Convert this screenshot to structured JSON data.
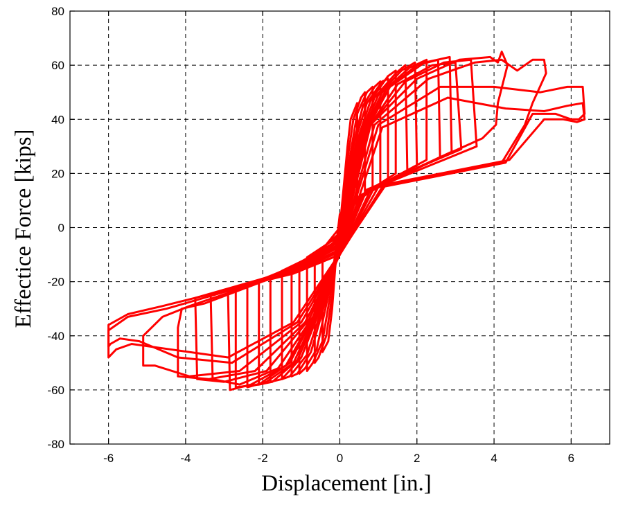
{
  "chart_data": {
    "type": "line",
    "title": "",
    "xlabel": "Displacement [in.]",
    "ylabel": "Effectice Force [kips]",
    "xlim": [
      -7,
      7
    ],
    "ylim": [
      -80,
      80
    ],
    "xticks": [
      -6,
      -4,
      -2,
      0,
      2,
      4,
      6
    ],
    "yticks": [
      -80,
      -60,
      -40,
      -20,
      0,
      20,
      40,
      60,
      80
    ],
    "grid": true,
    "legend": "none",
    "series": [
      {
        "color": "#ff0000",
        "segments": [
          [
            [
              0,
              0
            ],
            [
              0.12,
              18
            ],
            [
              0.2,
              30
            ],
            [
              0.28,
              40
            ],
            [
              0.45,
              46
            ],
            [
              0.45,
              10
            ],
            [
              0,
              3
            ],
            [
              -0.12,
              -15
            ],
            [
              -0.2,
              -30
            ],
            [
              -0.3,
              -42
            ],
            [
              -0.45,
              -46
            ],
            [
              -0.45,
              -8
            ],
            [
              0,
              0
            ]
          ],
          [
            [
              0,
              0
            ],
            [
              0.2,
              25
            ],
            [
              0.35,
              40
            ],
            [
              0.55,
              48
            ],
            [
              0.65,
              50
            ],
            [
              0.65,
              12
            ],
            [
              0,
              4
            ],
            [
              -0.2,
              -25
            ],
            [
              -0.35,
              -40
            ],
            [
              -0.55,
              -48
            ],
            [
              -0.65,
              -50
            ],
            [
              -0.65,
              -10
            ],
            [
              0,
              -2
            ]
          ],
          [
            [
              0,
              -2
            ],
            [
              0.25,
              25
            ],
            [
              0.45,
              42
            ],
            [
              0.7,
              50
            ],
            [
              0.85,
              52
            ],
            [
              0.85,
              14
            ],
            [
              0,
              5
            ],
            [
              -0.25,
              -25
            ],
            [
              -0.45,
              -42
            ],
            [
              -0.7,
              -50
            ],
            [
              -0.85,
              -53
            ],
            [
              -0.85,
              -11
            ],
            [
              0,
              -3
            ]
          ],
          [
            [
              0,
              -3
            ],
            [
              0.3,
              28
            ],
            [
              0.6,
              45
            ],
            [
              0.9,
              52
            ],
            [
              1.05,
              54
            ],
            [
              1.05,
              16
            ],
            [
              0.2,
              8
            ],
            [
              -0.3,
              -25
            ],
            [
              -0.6,
              -45
            ],
            [
              -0.9,
              -52
            ],
            [
              -1.05,
              -54
            ],
            [
              -1.05,
              -13
            ],
            [
              -0.2,
              -6
            ],
            [
              0,
              -3
            ]
          ],
          [
            [
              0,
              -3
            ],
            [
              0.35,
              30
            ],
            [
              0.7,
              46
            ],
            [
              1.1,
              54
            ],
            [
              1.25,
              55
            ],
            [
              1.25,
              18
            ],
            [
              0.3,
              9
            ],
            [
              -0.35,
              -26
            ],
            [
              -0.75,
              -46
            ],
            [
              -1.1,
              -54
            ],
            [
              -1.25,
              -55
            ],
            [
              -1.25,
              -15
            ],
            [
              -0.3,
              -7
            ],
            [
              0,
              -4
            ]
          ],
          [
            [
              0,
              -4
            ],
            [
              0.4,
              30
            ],
            [
              0.8,
              47
            ],
            [
              1.25,
              56
            ],
            [
              1.45,
              58
            ],
            [
              1.45,
              20
            ],
            [
              0.35,
              10
            ],
            [
              -0.4,
              -27
            ],
            [
              -0.85,
              -47
            ],
            [
              -1.3,
              -55
            ],
            [
              -1.5,
              -56
            ],
            [
              -1.5,
              -16
            ],
            [
              -0.35,
              -8
            ],
            [
              0,
              -5
            ]
          ],
          [
            [
              0,
              -5
            ],
            [
              0.45,
              31
            ],
            [
              0.9,
              48
            ],
            [
              1.45,
              57
            ],
            [
              1.7,
              60
            ],
            [
              1.75,
              21
            ],
            [
              0.4,
              10
            ],
            [
              -0.45,
              -28
            ],
            [
              -1.0,
              -48
            ],
            [
              -1.5,
              -56
            ],
            [
              -1.8,
              -57
            ],
            [
              -1.8,
              -18
            ],
            [
              -0.4,
              -9
            ],
            [
              0,
              -6
            ]
          ],
          [
            [
              0,
              -6
            ],
            [
              0.5,
              32
            ],
            [
              1.0,
              49
            ],
            [
              1.6,
              58
            ],
            [
              1.95,
              61
            ],
            [
              2.0,
              23
            ],
            [
              0.5,
              11
            ],
            [
              -0.5,
              -29
            ],
            [
              -1.1,
              -49
            ],
            [
              -1.75,
              -57
            ],
            [
              -2.1,
              -58
            ],
            [
              -2.1,
              -20
            ],
            [
              -0.5,
              -10
            ],
            [
              0,
              -6
            ]
          ],
          [
            [
              0,
              -6
            ],
            [
              0.55,
              33
            ],
            [
              1.1,
              50
            ],
            [
              1.8,
              59
            ],
            [
              2.25,
              62
            ],
            [
              2.25,
              25
            ],
            [
              0.55,
              12
            ],
            [
              -0.55,
              -30
            ],
            [
              -1.2,
              -50
            ],
            [
              -1.9,
              -57
            ],
            [
              -2.4,
              -59
            ],
            [
              -2.4,
              -22
            ],
            [
              -0.55,
              -10
            ],
            [
              0,
              -7
            ]
          ],
          [
            [
              0,
              -7
            ],
            [
              0.6,
              34
            ],
            [
              1.2,
              51
            ],
            [
              2.0,
              60
            ],
            [
              2.55,
              62
            ],
            [
              2.6,
              26
            ],
            [
              0.6,
              12
            ],
            [
              -0.6,
              -31
            ],
            [
              -1.3,
              -50
            ],
            [
              -2.1,
              -58
            ],
            [
              -2.7,
              -59
            ],
            [
              -2.7,
              -23
            ],
            [
              -0.6,
              -11
            ],
            [
              0,
              -7
            ]
          ],
          [
            [
              0,
              -7
            ],
            [
              0.65,
              35
            ],
            [
              1.3,
              52
            ],
            [
              2.2,
              61
            ],
            [
              2.85,
              63
            ],
            [
              2.9,
              28
            ],
            [
              0.65,
              13
            ],
            [
              -0.65,
              -32
            ],
            [
              -1.4,
              -51
            ],
            [
              -2.3,
              -58
            ],
            [
              -2.85,
              -60
            ],
            [
              -2.9,
              -24
            ],
            [
              -0.65,
              -12
            ],
            [
              0,
              -7
            ]
          ],
          [
            [
              0,
              -7
            ],
            [
              0.7,
              36
            ],
            [
              1.5,
              53
            ],
            [
              2.4,
              60
            ],
            [
              3.0,
              61
            ],
            [
              3.15,
              29
            ],
            [
              0.7,
              14
            ],
            [
              -0.7,
              -33
            ],
            [
              -1.6,
              -52
            ],
            [
              -2.6,
              -58
            ],
            [
              -3.3,
              -56
            ],
            [
              -3.35,
              -25
            ],
            [
              -0.7,
              -13
            ],
            [
              0,
              -8
            ]
          ],
          [
            [
              0,
              -8
            ],
            [
              0.75,
              37
            ],
            [
              1.7,
              54
            ],
            [
              2.7,
              61
            ],
            [
              3.4,
              62
            ],
            [
              3.55,
              30
            ],
            [
              0.8,
              14
            ],
            [
              -0.8,
              -34
            ],
            [
              -1.9,
              -53
            ],
            [
              -3.0,
              -57
            ],
            [
              -3.7,
              -56
            ],
            [
              -3.75,
              -26
            ],
            [
              -0.8,
              -14
            ],
            [
              0,
              -8
            ]
          ],
          [
            [
              0,
              -8
            ],
            [
              0.8,
              38
            ],
            [
              2.0,
              55
            ],
            [
              3.1,
              62
            ],
            [
              3.9,
              63
            ],
            [
              4.1,
              61
            ],
            [
              4.2,
              65
            ],
            [
              4.35,
              60
            ],
            [
              4.1,
              46
            ],
            [
              4.05,
              38
            ],
            [
              3.7,
              33
            ],
            [
              0.9,
              15
            ],
            [
              -0.9,
              -35
            ],
            [
              -2.2,
              -53
            ],
            [
              -3.4,
              -56
            ],
            [
              -4.2,
              -55
            ],
            [
              -4.2,
              -37
            ],
            [
              -4.1,
              -30
            ],
            [
              -3.5,
              -28
            ],
            [
              -0.9,
              -14
            ],
            [
              0,
              -9
            ]
          ],
          [
            [
              0,
              -9
            ],
            [
              0.9,
              38
            ],
            [
              2.3,
              55
            ],
            [
              3.5,
              61
            ],
            [
              4.2,
              62
            ],
            [
              4.6,
              58
            ],
            [
              5.0,
              62
            ],
            [
              5.3,
              62
            ],
            [
              5.35,
              57
            ],
            [
              5.0,
              46
            ],
            [
              4.8,
              38
            ],
            [
              4.2,
              24
            ],
            [
              1.0,
              15
            ],
            [
              -1.0,
              -35
            ],
            [
              -2.6,
              -53
            ],
            [
              -3.9,
              -55
            ],
            [
              -4.8,
              -51
            ],
            [
              -5.1,
              -51
            ],
            [
              -5.1,
              -40
            ],
            [
              -4.6,
              -33
            ],
            [
              -3.9,
              -29
            ],
            [
              -1.0,
              -15
            ],
            [
              0,
              -9
            ]
          ],
          [
            [
              0,
              -9
            ],
            [
              1.0,
              38
            ],
            [
              2.6,
              52
            ],
            [
              4.0,
              52
            ],
            [
              5.2,
              50
            ],
            [
              5.9,
              52
            ],
            [
              6.3,
              52
            ],
            [
              6.35,
              42
            ],
            [
              6.2,
              40
            ],
            [
              6.0,
              40
            ],
            [
              5.6,
              42
            ],
            [
              5.0,
              42
            ],
            [
              4.3,
              24
            ],
            [
              1.1,
              15
            ],
            [
              -1.1,
              -35
            ],
            [
              -2.8,
              -50
            ],
            [
              -4.2,
              -48
            ],
            [
              -5.2,
              -42
            ],
            [
              -5.7,
              -41
            ],
            [
              -5.95,
              -43
            ],
            [
              -6.0,
              -44
            ],
            [
              -6.0,
              -38
            ],
            [
              -5.5,
              -33
            ],
            [
              -4.5,
              -30
            ],
            [
              -1.1,
              -16
            ],
            [
              0,
              -10
            ]
          ],
          [
            [
              0,
              -10
            ],
            [
              1.1,
              37
            ],
            [
              2.8,
              48
            ],
            [
              4.3,
              44
            ],
            [
              5.3,
              43
            ],
            [
              5.9,
              45
            ],
            [
              6.3,
              46
            ],
            [
              6.35,
              40
            ],
            [
              6.15,
              39
            ],
            [
              5.8,
              40
            ],
            [
              5.3,
              40
            ],
            [
              4.4,
              25
            ],
            [
              1.2,
              16
            ],
            [
              -1.2,
              -35
            ],
            [
              -2.9,
              -48
            ],
            [
              -4.4,
              -45
            ],
            [
              -5.4,
              -43
            ],
            [
              -5.8,
              -45
            ],
            [
              -6.0,
              -48
            ],
            [
              -6.0,
              -36
            ],
            [
              -5.5,
              -32
            ],
            [
              -4.6,
              -29
            ],
            [
              -1.2,
              -17
            ],
            [
              0,
              -10
            ]
          ]
        ]
      }
    ]
  }
}
